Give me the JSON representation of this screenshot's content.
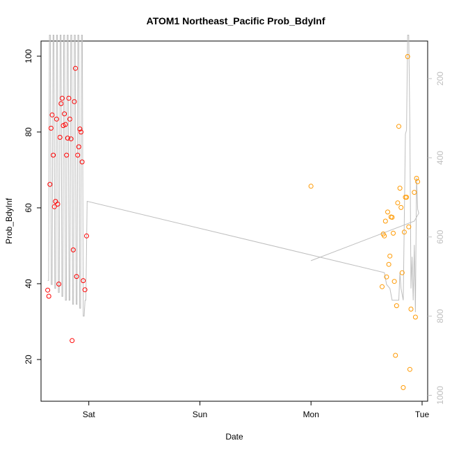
{
  "chart_data": {
    "type": "scatter",
    "title": "ATOM1 Northeast_Pacific Prob_BdyInf",
    "xlabel": "Date",
    "ylabel": "Prob_BdyInf",
    "x_ticks": [
      "Sat",
      "Sun",
      "Mon",
      "Tue"
    ],
    "x_tick_values": [
      1.0,
      2.0,
      3.0,
      4.0
    ],
    "xlim": [
      0.57,
      4.05
    ],
    "ylim": [
      9,
      104
    ],
    "y_ticks": [
      20,
      40,
      60,
      80,
      100
    ],
    "y2_ticks": [
      200,
      400,
      600,
      800,
      1000
    ],
    "y2lim": [
      1015,
      105
    ],
    "colors": {
      "series_early": "#ff0000",
      "series_late": "#ff9900",
      "line": "#bebebe"
    },
    "grid": false,
    "legend": "none",
    "series": [
      {
        "color": "#ff0000",
        "points": [
          [
            0.63,
            38.3
          ],
          [
            0.64,
            36.7
          ],
          [
            0.65,
            66.2
          ],
          [
            0.66,
            81.0
          ],
          [
            0.67,
            84.5
          ],
          [
            0.68,
            73.9
          ],
          [
            0.69,
            60.3
          ],
          [
            0.7,
            61.7
          ],
          [
            0.71,
            83.4
          ],
          [
            0.72,
            61.0
          ],
          [
            0.73,
            39.9
          ],
          [
            0.74,
            78.6
          ],
          [
            0.75,
            87.5
          ],
          [
            0.76,
            88.9
          ],
          [
            0.77,
            81.7
          ],
          [
            0.78,
            84.8
          ],
          [
            0.79,
            82.0
          ],
          [
            0.8,
            73.9
          ],
          [
            0.81,
            78.4
          ],
          [
            0.82,
            88.9
          ],
          [
            0.83,
            83.4
          ],
          [
            0.84,
            78.2
          ],
          [
            0.85,
            25.0
          ],
          [
            0.86,
            48.9
          ],
          [
            0.87,
            88.0
          ],
          [
            0.88,
            96.8
          ],
          [
            0.89,
            41.9
          ],
          [
            0.9,
            73.9
          ],
          [
            0.91,
            76.1
          ],
          [
            0.92,
            80.8
          ],
          [
            0.93,
            80.0
          ],
          [
            0.94,
            72.1
          ],
          [
            0.95,
            40.8
          ],
          [
            0.965,
            38.4
          ],
          [
            0.98,
            52.6
          ]
        ]
      },
      {
        "color": "#ff9900",
        "points": [
          [
            3.0,
            65.7
          ],
          [
            3.64,
            39.2
          ],
          [
            3.65,
            53.1
          ],
          [
            3.66,
            52.6
          ],
          [
            3.67,
            56.5
          ],
          [
            3.68,
            41.8
          ],
          [
            3.69,
            58.9
          ],
          [
            3.7,
            45.1
          ],
          [
            3.71,
            47.3
          ],
          [
            3.72,
            57.6
          ],
          [
            3.73,
            57.5
          ],
          [
            3.74,
            53.3
          ],
          [
            3.75,
            40.6
          ],
          [
            3.76,
            21.1
          ],
          [
            3.77,
            34.2
          ],
          [
            3.78,
            61.3
          ],
          [
            3.79,
            81.5
          ],
          [
            3.8,
            65.2
          ],
          [
            3.81,
            60.1
          ],
          [
            3.82,
            42.9
          ],
          [
            3.83,
            12.6
          ],
          [
            3.84,
            53.6
          ],
          [
            3.85,
            62.8
          ],
          [
            3.86,
            62.8
          ],
          [
            3.87,
            99.9
          ],
          [
            3.88,
            55.0
          ],
          [
            3.89,
            17.4
          ],
          [
            3.9,
            33.3
          ],
          [
            3.93,
            64.1
          ],
          [
            3.94,
            31.2
          ],
          [
            3.95,
            67.8
          ],
          [
            3.96,
            66.9
          ]
        ]
      }
    ],
    "line": {
      "color": "#bebebe",
      "axis": "right",
      "points": [
        [
          0.63,
          710
        ],
        [
          0.638,
          710
        ],
        [
          0.646,
          90
        ],
        [
          0.654,
          90
        ],
        [
          0.662,
          720
        ],
        [
          0.67,
          720
        ],
        [
          0.678,
          90
        ],
        [
          0.686,
          90
        ],
        [
          0.694,
          730
        ],
        [
          0.702,
          730
        ],
        [
          0.71,
          90
        ],
        [
          0.718,
          90
        ],
        [
          0.726,
          740
        ],
        [
          0.734,
          740
        ],
        [
          0.742,
          90
        ],
        [
          0.75,
          90
        ],
        [
          0.758,
          750
        ],
        [
          0.766,
          750
        ],
        [
          0.774,
          90
        ],
        [
          0.782,
          90
        ],
        [
          0.79,
          760
        ],
        [
          0.798,
          760
        ],
        [
          0.806,
          90
        ],
        [
          0.814,
          90
        ],
        [
          0.822,
          760
        ],
        [
          0.83,
          760
        ],
        [
          0.838,
          90
        ],
        [
          0.846,
          90
        ],
        [
          0.854,
          770
        ],
        [
          0.862,
          770
        ],
        [
          0.87,
          90
        ],
        [
          0.878,
          90
        ],
        [
          0.886,
          770
        ],
        [
          0.894,
          770
        ],
        [
          0.902,
          90
        ],
        [
          0.91,
          90
        ],
        [
          0.918,
          780
        ],
        [
          0.926,
          780
        ],
        [
          0.934,
          90
        ],
        [
          0.942,
          90
        ],
        [
          0.95,
          800
        ],
        [
          0.958,
          800
        ],
        [
          0.966,
          760
        ],
        [
          0.974,
          760
        ],
        [
          0.985,
          510
        ],
        [
          3.66,
          690
        ],
        [
          3.68,
          720
        ],
        [
          3.71,
          730
        ],
        [
          3.73,
          760
        ],
        [
          3.76,
          760
        ],
        [
          3.79,
          760
        ],
        [
          3.8,
          690
        ],
        [
          3.81,
          730
        ],
        [
          3.83,
          760
        ],
        [
          3.85,
          340
        ],
        [
          3.86,
          330
        ],
        [
          3.87,
          90
        ],
        [
          3.88,
          90
        ],
        [
          3.89,
          320
        ],
        [
          3.9,
          730
        ],
        [
          3.91,
          650
        ],
        [
          3.92,
          760
        ],
        [
          3.93,
          620
        ],
        [
          3.94,
          790
        ],
        [
          3.95,
          450
        ],
        [
          3.96,
          530
        ],
        [
          3.97,
          540
        ],
        [
          3.93,
          560
        ],
        [
          3.0,
          660
        ]
      ]
    }
  }
}
